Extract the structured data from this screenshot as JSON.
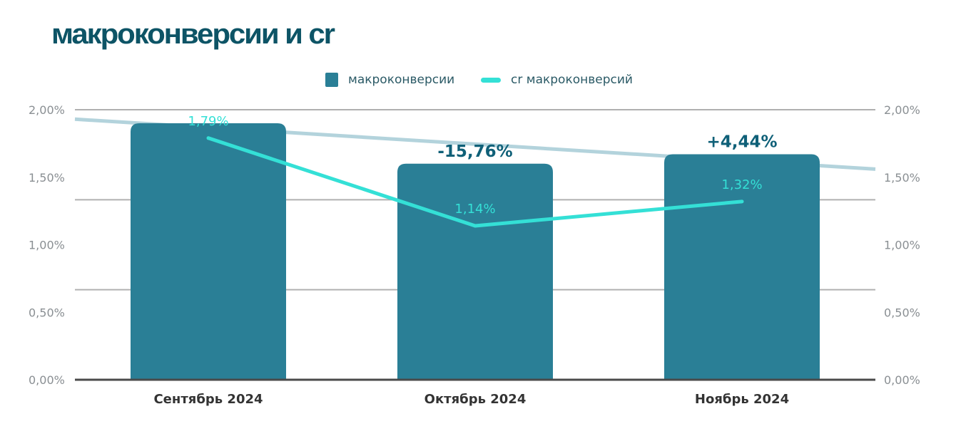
{
  "chart_data": {
    "type": "bar+line",
    "title": "макроконверсии и cr",
    "categories": [
      "Сентябрь 2024",
      "Октябрь 2024",
      "Ноябрь 2024"
    ],
    "series": [
      {
        "name": "макроконверсии",
        "type": "bar",
        "values": [
          1.9,
          1.6,
          1.67
        ],
        "color": "#2a7f96",
        "change_labels": [
          "",
          "-15,76%",
          "+4,44%"
        ]
      },
      {
        "name": "cr макроконверсий",
        "type": "line",
        "values": [
          1.79,
          1.14,
          1.32
        ],
        "color": "#34e0d6",
        "data_labels": [
          "1,79%",
          "1,14%",
          "1,32%"
        ]
      }
    ],
    "trendline": {
      "from": 1.93,
      "to": 1.56,
      "color": "#b3d3dc"
    },
    "y_left": {
      "ticks": [
        "0,00%",
        "0,50%",
        "1,00%",
        "1,50%",
        "2,00%"
      ],
      "range": [
        0,
        2
      ]
    },
    "y_right": {
      "ticks": [
        "0,00%",
        "0,50%",
        "1,00%",
        "1,50%",
        "2,00%"
      ],
      "range": [
        0,
        2
      ]
    },
    "grid": true,
    "legend_placement": "top-center"
  }
}
